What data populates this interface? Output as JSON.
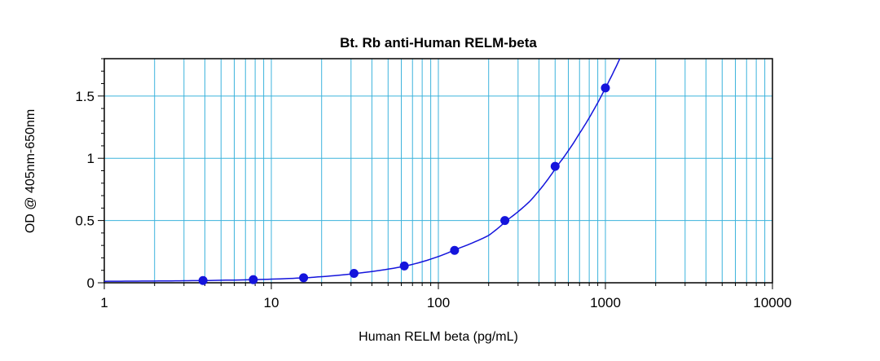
{
  "chart_data": {
    "type": "scatter",
    "title": "Bt. Rb anti-Human RELM-beta",
    "xlabel": "Human RELM beta (pg/mL)",
    "ylabel": "OD @ 405nm-650nm",
    "x_scale": "log",
    "xlim": [
      1,
      10000
    ],
    "ylim": [
      0,
      1.8
    ],
    "x_ticks": [
      1,
      10,
      100,
      1000,
      10000
    ],
    "x_tick_labels": [
      "1",
      "10",
      "100",
      "1000",
      "10000"
    ],
    "y_ticks": [
      0,
      0.5,
      1,
      1.5
    ],
    "y_tick_labels": [
      "0",
      "0.5",
      "1",
      "1.5"
    ],
    "grid": true,
    "points": [
      {
        "x": 3.9,
        "y": 0.018
      },
      {
        "x": 7.8,
        "y": 0.025
      },
      {
        "x": 15.6,
        "y": 0.04
      },
      {
        "x": 31.25,
        "y": 0.075
      },
      {
        "x": 62.5,
        "y": 0.135
      },
      {
        "x": 125,
        "y": 0.26
      },
      {
        "x": 250,
        "y": 0.5
      },
      {
        "x": 500,
        "y": 0.935
      },
      {
        "x": 1000,
        "y": 1.565
      }
    ],
    "fit_curve": {
      "x": [
        1,
        2,
        4,
        8,
        16,
        32,
        64,
        128,
        200,
        256,
        350,
        512,
        700,
        1000,
        1220
      ],
      "y": [
        0.012,
        0.014,
        0.018,
        0.025,
        0.04,
        0.075,
        0.135,
        0.27,
        0.38,
        0.5,
        0.65,
        0.935,
        1.2,
        1.565,
        1.8
      ]
    },
    "colors": {
      "grid": "#3cb3dc",
      "series": "#1414dc",
      "axis": "#000000"
    }
  }
}
